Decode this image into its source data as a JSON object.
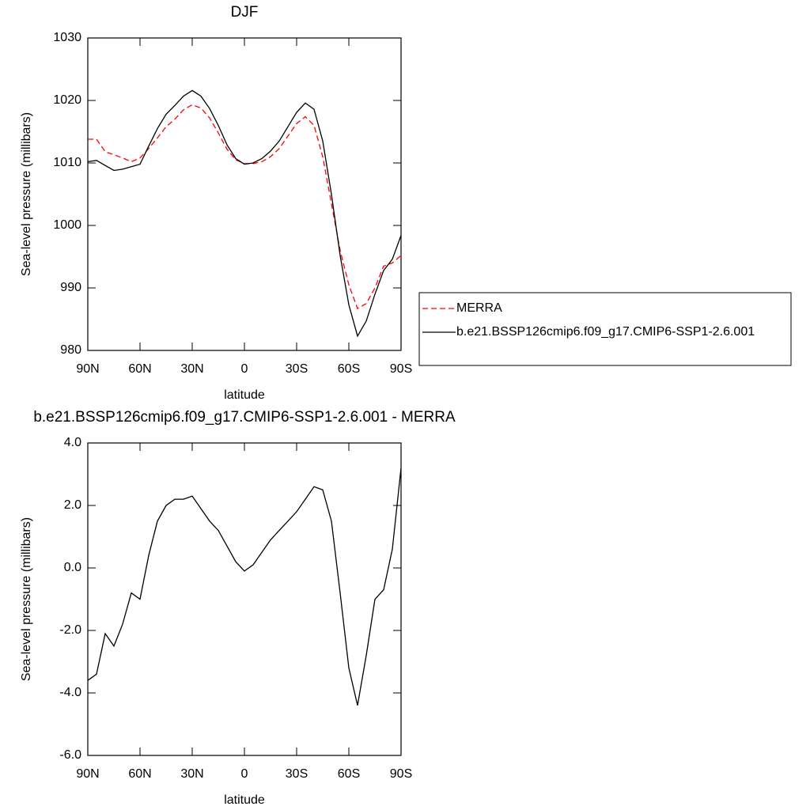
{
  "chart_data": [
    {
      "type": "line",
      "title": "DJF",
      "xlabel": "latitude",
      "ylabel": "Sea-level pressure (millibars)",
      "x": [
        90,
        85,
        80,
        75,
        70,
        65,
        60,
        55,
        50,
        45,
        40,
        35,
        30,
        25,
        20,
        15,
        10,
        5,
        0,
        -5,
        -10,
        -15,
        -20,
        -25,
        -30,
        -35,
        -40,
        -45,
        -50,
        -55,
        -60,
        -65,
        -70,
        -75,
        -80,
        -85,
        -90
      ],
      "series": [
        {
          "name": "MERRA",
          "color": "#ff0000",
          "dashed": true,
          "values": [
            1013.8,
            1013.8,
            1011.8,
            1011.3,
            1010.8,
            1010.2,
            1010.8,
            1012.3,
            1014.0,
            1015.8,
            1017.0,
            1018.5,
            1019.3,
            1018.8,
            1017.2,
            1014.8,
            1012.2,
            1010.5,
            1009.9,
            1009.9,
            1010.2,
            1011.0,
            1012.3,
            1014.3,
            1016.3,
            1017.4,
            1016.0,
            1011.0,
            1003.5,
            996.0,
            990.5,
            986.7,
            987.5,
            990.0,
            993.5,
            994.0,
            995.2
          ]
        },
        {
          "name": "b.e21.BSSP126cmip6.f09_g17.CMIP6-SSP1-2.6.001",
          "color": "#000000",
          "dashed": false,
          "values": [
            1010.2,
            1010.4,
            1009.6,
            1008.8,
            1009.0,
            1009.4,
            1009.8,
            1012.7,
            1015.5,
            1017.8,
            1019.2,
            1020.7,
            1021.6,
            1020.7,
            1018.7,
            1016.0,
            1012.9,
            1010.7,
            1009.8,
            1010.0,
            1010.7,
            1011.9,
            1013.5,
            1015.8,
            1018.1,
            1019.6,
            1018.6,
            1013.5,
            1005.0,
            995.2,
            987.3,
            982.3,
            984.7,
            989.0,
            992.8,
            994.6,
            998.4
          ]
        }
      ],
      "xlim": [
        90,
        -90
      ],
      "xticks": [
        {
          "value": 90,
          "label": "90N"
        },
        {
          "value": 60,
          "label": "60N"
        },
        {
          "value": 30,
          "label": "30N"
        },
        0,
        {
          "value": -30,
          "label": "30S"
        },
        {
          "value": -60,
          "label": "60S"
        },
        {
          "value": -90,
          "label": "90S"
        }
      ],
      "ylim": [
        980,
        1030
      ],
      "yticks": [
        980,
        990,
        1000,
        1010,
        1020,
        1030
      ],
      "legend": "right"
    },
    {
      "type": "line",
      "title": "b.e21.BSSP126cmip6.f09_g17.CMIP6-SSP1-2.6.001 - MERRA",
      "xlabel": "latitude",
      "ylabel": "Sea-level pressure (millibars)",
      "x": [
        90,
        85,
        80,
        75,
        70,
        65,
        60,
        55,
        50,
        45,
        40,
        35,
        30,
        25,
        20,
        15,
        10,
        5,
        0,
        -5,
        -10,
        -15,
        -20,
        -25,
        -30,
        -35,
        -40,
        -45,
        -50,
        -55,
        -60,
        -65,
        -70,
        -75,
        -80,
        -85,
        -90
      ],
      "series": [
        {
          "color": "#000000",
          "dashed": false,
          "values": [
            -3.6,
            -3.4,
            -2.1,
            -2.5,
            -1.8,
            -0.8,
            -1.0,
            0.4,
            1.5,
            2.0,
            2.2,
            2.2,
            2.3,
            1.9,
            1.5,
            1.2,
            0.7,
            0.2,
            -0.1,
            0.1,
            0.5,
            0.9,
            1.2,
            1.5,
            1.8,
            2.2,
            2.6,
            2.5,
            1.5,
            -0.8,
            -3.2,
            -4.4,
            -2.8,
            -1.0,
            -0.7,
            0.6,
            3.2
          ]
        }
      ],
      "xlim": [
        90,
        -90
      ],
      "xticks": [
        {
          "value": 90,
          "label": "90N"
        },
        {
          "value": 60,
          "label": "60N"
        },
        {
          "value": 30,
          "label": "30N"
        },
        0,
        {
          "value": -30,
          "label": "30S"
        },
        {
          "value": -60,
          "label": "60S"
        },
        {
          "value": -90,
          "label": "90S"
        }
      ],
      "ylim": [
        -6,
        4
      ],
      "yticks": [
        {
          "value": -6,
          "label": "-6.0"
        },
        {
          "value": -4,
          "label": "-4.0"
        },
        {
          "value": -2,
          "label": "-2.0"
        },
        {
          "value": 0,
          "label": "0.0"
        },
        {
          "value": 2,
          "label": "2.0"
        },
        {
          "value": 4,
          "label": "4.0"
        }
      ]
    }
  ]
}
